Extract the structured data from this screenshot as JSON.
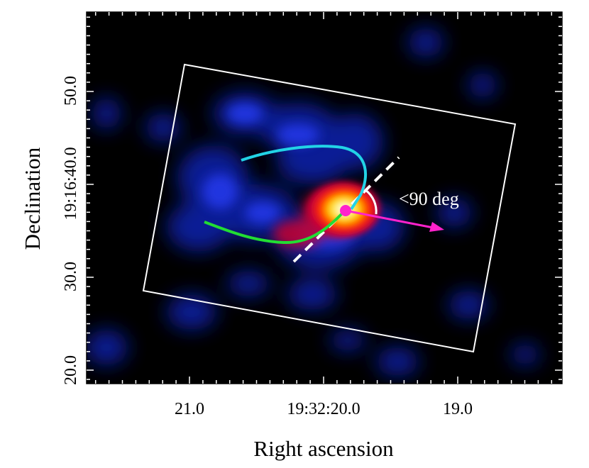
{
  "figure": {
    "xlabel": "Right ascension",
    "ylabel": "Declination",
    "x_ticks": [
      "21.0",
      "19:32:20.0",
      "19.0"
    ],
    "y_ticks": [
      "20.0",
      "30.0",
      "19:16:40.0",
      "50.0"
    ],
    "annotation": "<90 deg"
  },
  "colors": {
    "background": "#000000",
    "frame": "#ffffff",
    "upper_arc": "#22d3e6",
    "lower_arc": "#22dd33",
    "motion_arrow": "#ff22cc",
    "source_marker": "#ff22cc",
    "axis_line": "#ffffff"
  }
}
